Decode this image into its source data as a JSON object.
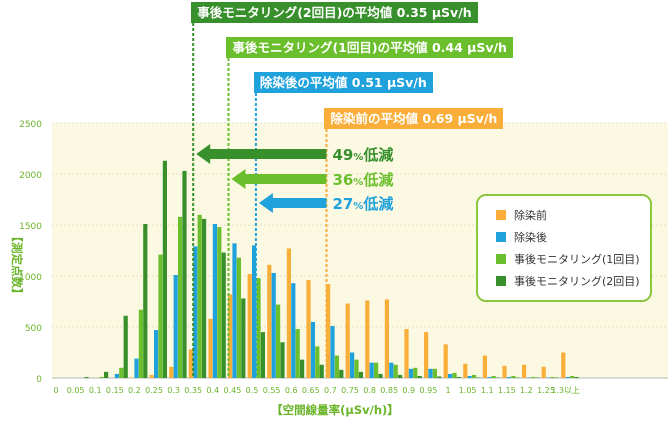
{
  "colors": {
    "before": "#f9ae3a",
    "after": "#1fa2dc",
    "monitor1": "#6bbf2d",
    "monitor2": "#37902c",
    "plot_bg": "#fcf9e3",
    "axis_text": "#6bb52a"
  },
  "annotations": {
    "monitor2": "事後モニタリング(2回目)の平均値 0.35 μSv/h",
    "monitor1": "事後モニタリング(1回目)の平均値 0.44 μSv/h",
    "after": "除染後の平均値 0.51 μSv/h",
    "before": "除染前の平均値 0.69 μSv/h"
  },
  "reductions": [
    {
      "value": "49",
      "unit": "%",
      "label": "低減"
    },
    {
      "value": "36",
      "unit": "%",
      "label": "低減"
    },
    {
      "value": "27",
      "unit": "%",
      "label": "低減"
    }
  ],
  "legend": {
    "before": "除染前",
    "after": "除染後",
    "monitor1": "事後モニタリング(1回目)",
    "monitor2": "事後モニタリング(2回目)"
  },
  "chart_data": {
    "type": "bar",
    "xlabel": "【空間線量率(μSv/h)】",
    "ylabel": "【測定点数】",
    "ylim": [
      0,
      2500
    ],
    "yticks": [
      "0",
      "500",
      "1000",
      "1500",
      "2000",
      "2500"
    ],
    "categories": [
      "0",
      "0.05",
      "0.1",
      "0.15",
      "0.2",
      "0.25",
      "0.3",
      "0.35",
      "0.4",
      "0.45",
      "0.5",
      "0.55",
      "0.6",
      "0.65",
      "0.7",
      "0.75",
      "0.8",
      "0.85",
      "0.9",
      "0.95",
      "1",
      "1.05",
      "1.1",
      "1.15",
      "1.2",
      "1.25",
      "1.3以上"
    ],
    "series": [
      {
        "name": "除染前",
        "key": "before",
        "values": [
          0,
          0,
          0,
          0,
          5,
          30,
          110,
          280,
          580,
          820,
          1020,
          1110,
          1270,
          960,
          920,
          730,
          760,
          770,
          480,
          450,
          330,
          140,
          220,
          120,
          130,
          110,
          250
        ]
      },
      {
        "name": "除染後",
        "key": "after",
        "values": [
          0,
          0,
          0,
          40,
          190,
          470,
          1010,
          1290,
          1510,
          1320,
          1300,
          1030,
          930,
          550,
          510,
          250,
          150,
          150,
          90,
          90,
          40,
          20,
          10,
          10,
          5,
          5,
          10
        ]
      },
      {
        "name": "事後モニタリング(1回目)",
        "key": "monitor1",
        "values": [
          0,
          0,
          10,
          100,
          670,
          1210,
          1580,
          1600,
          1480,
          1180,
          980,
          720,
          480,
          310,
          220,
          180,
          150,
          130,
          100,
          90,
          50,
          30,
          20,
          20,
          10,
          10,
          20
        ]
      },
      {
        "name": "事後モニタリング(2回目)",
        "key": "monitor2",
        "values": [
          0,
          10,
          60,
          610,
          1510,
          2130,
          2030,
          1560,
          1230,
          780,
          450,
          350,
          180,
          130,
          80,
          60,
          40,
          30,
          20,
          15,
          10,
          5,
          5,
          5,
          5,
          5,
          10
        ]
      }
    ],
    "averages": {
      "before": 0.69,
      "after": 0.51,
      "monitor1": 0.44,
      "monitor2": 0.35
    },
    "grid": true,
    "legend_position": "right"
  }
}
